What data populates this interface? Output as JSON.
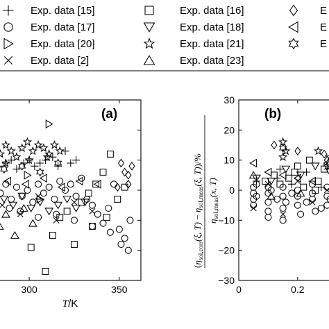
{
  "legend": {
    "entries": [
      {
        "label": "Exp. data [15]",
        "marker": "plus"
      },
      {
        "label": "Exp. data [16]",
        "marker": "square"
      },
      {
        "label": "E",
        "marker": "diamond"
      },
      {
        "label": "Exp. data [17]",
        "marker": "circle"
      },
      {
        "label": "Exp. data [18]",
        "marker": "triangle-down"
      },
      {
        "label": "E",
        "marker": "triangle-left"
      },
      {
        "label": "Exp. data [20]",
        "marker": "triangle-right"
      },
      {
        "label": "Exp. data [21]",
        "marker": "pentagram"
      },
      {
        "label": "E",
        "marker": "hexagram"
      },
      {
        "label": "Exp. data [2]",
        "marker": "cross"
      },
      {
        "label": "Exp. data [23]",
        "marker": "triangle-up"
      }
    ]
  },
  "chart_data": [
    {
      "type": "scatter",
      "panel_label": "(a)",
      "xlabel": "T/K",
      "xlabel_var": "T",
      "xlabel_unit": "/K",
      "xlim": [
        283,
        362
      ],
      "ylim": [
        -30,
        30
      ],
      "xticks": [
        300,
        350
      ],
      "xtick_labels": [
        "300",
        "350"
      ],
      "series": [
        {
          "marker": "plus",
          "points": [
            [
              283.5,
              8
            ],
            [
              287,
              9
            ],
            [
              290,
              10
            ],
            [
              293,
              7
            ],
            [
              297,
              9
            ],
            [
              300,
              10
            ],
            [
              303,
              8
            ],
            [
              306,
              9
            ],
            [
              309,
              10
            ],
            [
              313,
              11
            ],
            [
              316,
              8
            ],
            [
              320,
              13
            ],
            [
              323,
              9
            ],
            [
              326,
              10
            ]
          ]
        },
        {
          "marker": "square",
          "points": [
            [
              301,
              -19
            ],
            [
              309,
              -27
            ],
            [
              313,
              -15
            ],
            [
              317,
              -9
            ],
            [
              321,
              -7
            ],
            [
              325,
              -18
            ],
            [
              329,
              -4
            ],
            [
              333,
              -1
            ],
            [
              337,
              2
            ],
            [
              341,
              6
            ],
            [
              345,
              12
            ],
            [
              349,
              -3
            ],
            [
              353,
              1
            ],
            [
              343,
              -9
            ],
            [
              335,
              -12
            ]
          ]
        },
        {
          "marker": "diamond",
          "points": [
            [
              351,
              9
            ],
            [
              353,
              6
            ],
            [
              355,
              5
            ],
            [
              357,
              8
            ],
            [
              355,
              2
            ],
            [
              349,
              1
            ]
          ]
        },
        {
          "marker": "circle",
          "points": [
            [
              284,
              -1
            ],
            [
              287,
              2
            ],
            [
              290,
              -3
            ],
            [
              293,
              1
            ],
            [
              296,
              -2
            ],
            [
              299,
              0
            ],
            [
              302,
              -4
            ],
            [
              305,
              2
            ],
            [
              308,
              -1
            ],
            [
              311,
              1
            ],
            [
              314,
              -3
            ],
            [
              317,
              3
            ],
            [
              320,
              0
            ],
            [
              323,
              2
            ],
            [
              326,
              -2
            ],
            [
              329,
              4
            ],
            [
              332,
              -3
            ],
            [
              335,
              -5
            ],
            [
              338,
              -8
            ],
            [
              341,
              -11
            ],
            [
              344,
              -6
            ],
            [
              347,
              2
            ],
            [
              350,
              -13
            ],
            [
              353,
              -16
            ],
            [
              356,
              -10
            ],
            [
              289,
              -6
            ],
            [
              295,
              -7
            ],
            [
              305,
              -9
            ],
            [
              315,
              -8
            ],
            [
              325,
              -10
            ],
            [
              335,
              -12
            ],
            [
              345,
              -14
            ],
            [
              351,
              -18
            ],
            [
              355,
              -20
            ]
          ]
        },
        {
          "marker": "triangle-down",
          "points": [
            [
              286,
              -3
            ],
            [
              291,
              -5
            ],
            [
              296,
              -2
            ],
            [
              301,
              -6
            ],
            [
              306,
              -4
            ],
            [
              311,
              -7
            ],
            [
              316,
              -5
            ],
            [
              321,
              -3
            ],
            [
              326,
              -6
            ],
            [
              331,
              -4
            ]
          ]
        },
        {
          "marker": "triangle-left",
          "points": [
            [
              288,
              3
            ],
            [
              298,
              2
            ],
            [
              308,
              4
            ],
            [
              318,
              1
            ],
            [
              328,
              3
            ],
            [
              338,
              2
            ]
          ]
        },
        {
          "marker": "triangle-right",
          "points": [
            [
              311,
              22
            ],
            [
              299,
              5
            ],
            [
              306,
              -3
            ]
          ]
        },
        {
          "marker": "pentagram",
          "points": [
            [
              284,
              12
            ],
            [
              287,
              15
            ],
            [
              290,
              13
            ],
            [
              293,
              11
            ],
            [
              296,
              14
            ],
            [
              299,
              16
            ],
            [
              302,
              13
            ],
            [
              305,
              15
            ],
            [
              308,
              14
            ],
            [
              311,
              12
            ],
            [
              314,
              15
            ],
            [
              317,
              13
            ],
            [
              287,
              9
            ],
            [
              300,
              10
            ],
            [
              310,
              11
            ]
          ]
        },
        {
          "marker": "hexagram",
          "points": [
            [
              286,
              7
            ],
            [
              296,
              8
            ],
            [
              306,
              6
            ],
            [
              316,
              9
            ]
          ]
        },
        {
          "marker": "cross",
          "points": [
            [
              285,
              -5
            ],
            [
              295,
              -8
            ],
            [
              305,
              -2
            ],
            [
              315,
              -10
            ],
            [
              325,
              -4
            ],
            [
              335,
              -7
            ]
          ]
        },
        {
          "marker": "triangle-up",
          "points": [
            [
              283.5,
              -12
            ],
            [
              287,
              -8
            ],
            [
              292,
              -15
            ],
            [
              297,
              -6
            ],
            [
              302,
              -11
            ]
          ]
        }
      ]
    },
    {
      "type": "scatter",
      "panel_label": "(b)",
      "ylabel": "(η_sol,corr(ξ,T) − η_sol,meas(ξ,T))/η_sol,meas(x,T) /%",
      "ylabel_parts": {
        "num_left": "η",
        "num_left_sub": "sol,corr",
        "num_left_arg": "(ξ, T)",
        "num_right": "η",
        "num_right_sub": "sol,meas",
        "num_right_arg": "(ξ, T)",
        "den": "η",
        "den_sub": "sol,meas",
        "den_arg": "(x, T)",
        "unit": "/%"
      },
      "xlim": [
        0,
        0.33
      ],
      "ylim": [
        -30,
        30
      ],
      "xticks": [
        0,
        0.2
      ],
      "xtick_labels": [
        "0",
        "0.2"
      ],
      "yticks": [
        -30,
        -20,
        -10,
        0,
        10,
        20,
        30
      ],
      "ytick_labels": [
        "−30",
        "−20",
        "−10",
        "0",
        "10",
        "20",
        "30"
      ],
      "series": [
        {
          "marker": "circle",
          "points": [
            [
              0.05,
              -1
            ],
            [
              0.05,
              -3
            ],
            [
              0.05,
              1
            ],
            [
              0.05,
              -5
            ],
            [
              0.06,
              2
            ],
            [
              0.06,
              -2
            ],
            [
              0.1,
              -1
            ],
            [
              0.1,
              -4
            ],
            [
              0.1,
              1
            ],
            [
              0.1,
              -7
            ],
            [
              0.1,
              -9
            ],
            [
              0.11,
              0
            ],
            [
              0.15,
              -2
            ],
            [
              0.15,
              -6
            ],
            [
              0.15,
              -10
            ],
            [
              0.15,
              1
            ],
            [
              0.16,
              -4
            ],
            [
              0.2,
              -2
            ],
            [
              0.2,
              0
            ],
            [
              0.2,
              -5
            ],
            [
              0.21,
              -8
            ],
            [
              0.25,
              -1
            ],
            [
              0.25,
              -3
            ],
            [
              0.25,
              2
            ],
            [
              0.26,
              -7
            ],
            [
              0.3,
              -2
            ],
            [
              0.3,
              1
            ],
            [
              0.3,
              -5
            ],
            [
              0.31,
              -3
            ],
            [
              0.13,
              -3
            ],
            [
              0.18,
              -1
            ],
            [
              0.23,
              -4
            ],
            [
              0.28,
              -6
            ]
          ]
        },
        {
          "marker": "square",
          "points": [
            [
              0.09,
              3
            ],
            [
              0.12,
              5
            ],
            [
              0.14,
              2
            ],
            [
              0.17,
              4
            ],
            [
              0.19,
              6
            ],
            [
              0.22,
              1
            ],
            [
              0.24,
              10
            ],
            [
              0.27,
              3
            ],
            [
              0.29,
              7
            ],
            [
              0.32,
              5
            ],
            [
              0.2,
              8
            ],
            [
              0.26,
              0
            ]
          ]
        },
        {
          "marker": "triangle-left",
          "points": [
            [
              0.05,
              9
            ],
            [
              0.1,
              6
            ],
            [
              0.15,
              5
            ],
            [
              0.2,
              4
            ],
            [
              0.25,
              3
            ],
            [
              0.3,
              9
            ]
          ]
        },
        {
          "marker": "triangle-down",
          "points": [
            [
              0.06,
              4
            ],
            [
              0.11,
              3
            ],
            [
              0.16,
              7
            ],
            [
              0.21,
              5
            ],
            [
              0.26,
              8
            ],
            [
              0.31,
              6
            ]
          ]
        },
        {
          "marker": "pentagram",
          "points": [
            [
              0.15,
              16
            ],
            [
              0.16,
              13
            ],
            [
              0.15,
              11
            ],
            [
              0.27,
              13
            ],
            [
              0.31,
              11
            ],
            [
              0.3,
              8
            ]
          ]
        },
        {
          "marker": "hexagram",
          "points": [
            [
              0.15,
              14
            ]
          ]
        },
        {
          "marker": "diamond",
          "points": [
            [
              0.12,
              15
            ],
            [
              0.2,
              13
            ],
            [
              0.29,
              12
            ],
            [
              0.3,
              10
            ]
          ]
        },
        {
          "marker": "cross",
          "points": [
            [
              0.05,
              -6
            ],
            [
              0.1,
              2
            ],
            [
              0.15,
              -8
            ],
            [
              0.2,
              3
            ],
            [
              0.25,
              -4
            ],
            [
              0.3,
              0
            ]
          ]
        },
        {
          "marker": "plus",
          "points": [
            [
              0.06,
              3
            ],
            [
              0.13,
              4
            ],
            [
              0.18,
              2
            ],
            [
              0.23,
              6
            ],
            [
              0.28,
              1
            ],
            [
              0.32,
              4
            ],
            [
              0.14,
              7
            ]
          ]
        },
        {
          "marker": "triangle-up",
          "points": [
            [
              0.05,
              5
            ],
            [
              0.11,
              -2
            ],
            [
              0.21,
              -1
            ]
          ]
        }
      ]
    }
  ]
}
